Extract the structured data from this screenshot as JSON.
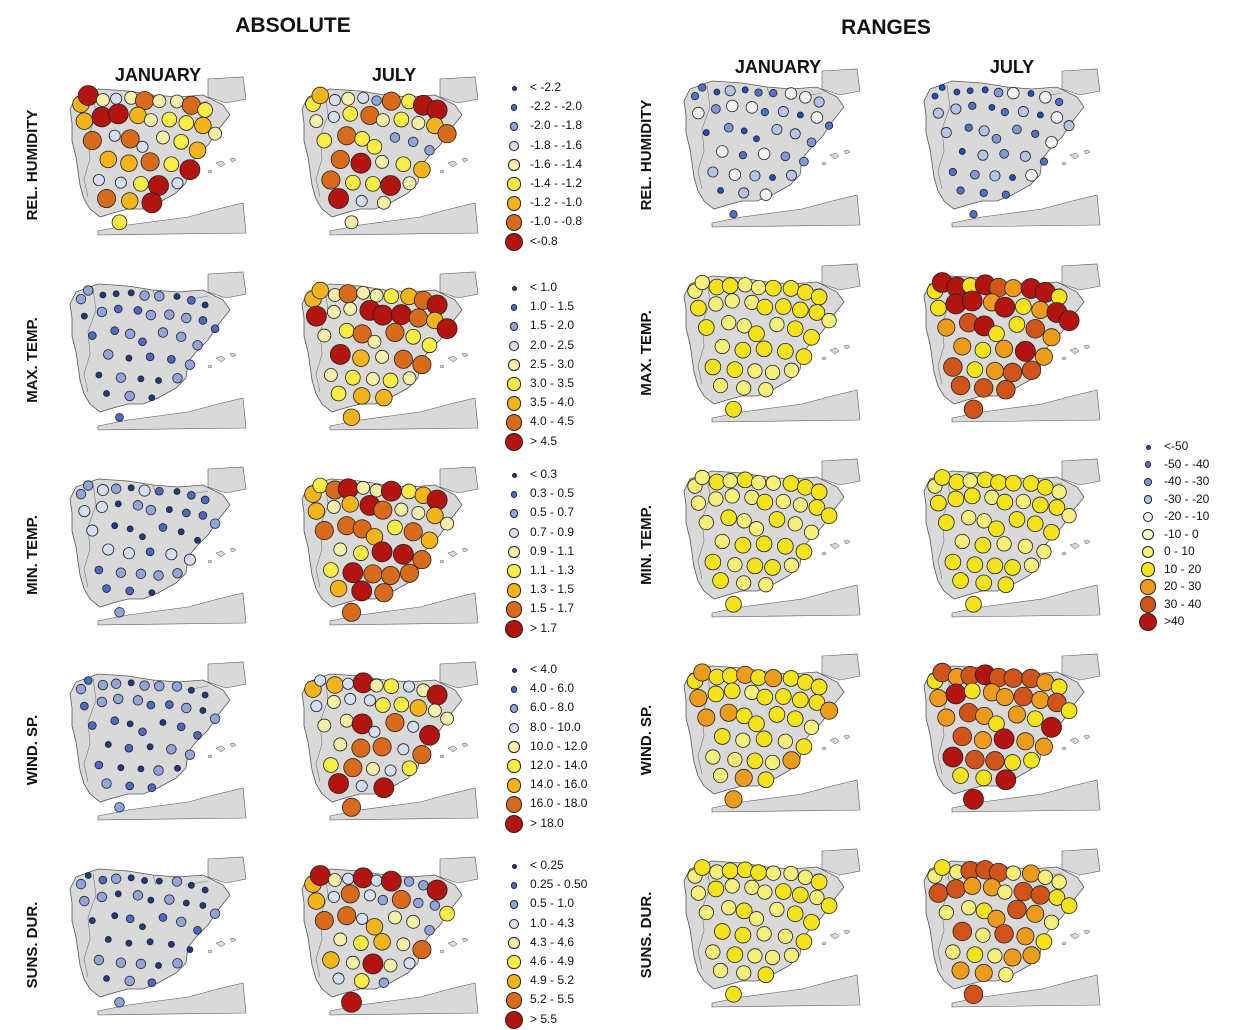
{
  "sections": {
    "absolute": "ABSOLUTE",
    "ranges": "RANGES"
  },
  "months": {
    "jan": "JANUARY",
    "jul": "JULY"
  },
  "variables": [
    {
      "key": "rh",
      "label": "REL. HUMIDITY"
    },
    {
      "key": "tmax",
      "label": "MAX. TEMP."
    },
    {
      "key": "tmin",
      "label": "MIN. TEMP."
    },
    {
      "key": "wind",
      "label": "WIND. SP."
    },
    {
      "key": "sun",
      "label": "SUNS. DUR."
    }
  ],
  "absolute_legends": [
    [
      "< -2.2",
      "-2.2 - -2.0",
      "-2.0 - -1.8",
      "-1.8 - -1.6",
      "-1.6 - -1.4",
      "-1.4 - -1.2",
      "-1.2 - -1.0",
      "-1.0 - -0.8",
      "<-0.8"
    ],
    [
      "< 1.0",
      "1.0 - 1.5",
      "1.5 - 2.0",
      "2.0 - 2.5",
      "2.5 - 3.0",
      "3.0 - 3.5",
      "3.5 - 4.0",
      "4.0 - 4.5",
      "> 4.5"
    ],
    [
      "< 0.3",
      "0.3 - 0.5",
      "0.5 - 0.7",
      "0.7 - 0.9",
      "0.9 - 1.1",
      "1.1 - 1.3",
      "1.3 - 1.5",
      "1.5 - 1.7",
      "> 1.7"
    ],
    [
      "< 4.0",
      "4.0 - 6.0",
      "6.0 - 8.0",
      "8.0 - 10.0",
      "10.0 - 12.0",
      "12.0 - 14.0",
      "14.0 - 16.0",
      "16.0 - 18.0",
      "> 18.0"
    ],
    [
      "< 0.25",
      "0.25 - 0.50",
      "0.5 - 1.0",
      "1.0 - 4.3",
      "4.3 - 4.6",
      "4.6 - 4.9",
      "4.9 - 5.2",
      "5.2 - 5.5",
      "> 5.5"
    ]
  ],
  "range_legend": [
    "<-50",
    "-50 - -40",
    "-40 - -30",
    "-30 - -20",
    "-20 - -10",
    "-10 - 0",
    "0 - 10",
    "10 - 20",
    "20 - 30",
    "30 - 40",
    ">40"
  ],
  "absolute_colors": [
    "#1f3a8a",
    "#4a6bc4",
    "#8ea6dc",
    "#d4dff2",
    "#f6efa8",
    "#f8ec45",
    "#f3b31a",
    "#d86a1b",
    "#b3140f"
  ],
  "range_colors": [
    "#1a50c8",
    "#4c72cc",
    "#7d9ad8",
    "#b3c4e8",
    "#f2f2f2",
    "#f7f6c8",
    "#f6f07a",
    "#f4e21a",
    "#ec9b1a",
    "#d0531a",
    "#b3140f"
  ],
  "map_style": {
    "land": "#d9d9d9",
    "coast": "#555555"
  }
}
